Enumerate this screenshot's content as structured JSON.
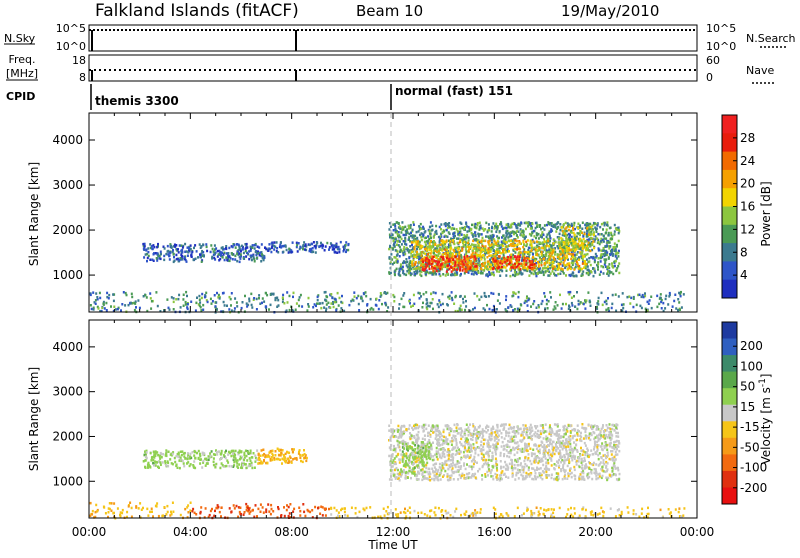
{
  "header": {
    "station": "Falkland Islands (fitACF)",
    "beam": "Beam 10",
    "date": "19/May/2010"
  },
  "params": {
    "nsky_label": "N.Sky",
    "nsky_ticks": [
      "10^5",
      "10^0"
    ],
    "nsearch_label": "N.Search",
    "nsearch_ticks": [
      "10^5",
      "10^0"
    ],
    "freq_label": "Freq.",
    "freq_unit": "[MHz]",
    "freq_ticks": [
      "18",
      "8"
    ],
    "nave_label": "Nave",
    "nave_ticks": [
      "60",
      "0"
    ],
    "cpid_label": "CPID",
    "cpid_segments": [
      {
        "label": "themis 3300",
        "start_h": 0,
        "end_h": 12
      },
      {
        "label": "normal (fast) 151",
        "start_h": 12,
        "end_h": 24
      }
    ]
  },
  "colors": {
    "power_scale": [
      "#1f2fbf",
      "#2e55c8",
      "#3b7a8f",
      "#4a9a55",
      "#8cc63f",
      "#f2d400",
      "#f5a000",
      "#f26a00",
      "#e81c0c",
      "#f02020"
    ],
    "velocity_scale": [
      "#1e3aa0",
      "#2f5fc0",
      "#3c8a6a",
      "#5aa84a",
      "#8fd050",
      "#c8c8c8",
      "#f5c518",
      "#f59a18",
      "#f26a10",
      "#e03010",
      "#e81010"
    ],
    "cpid_marker": "#000000",
    "divider": "#bbbbbb"
  },
  "chart_data": [
    {
      "type": "heatmap",
      "title": "Power",
      "xlabel": "Time UT",
      "ylabel": "Slant Range [km]",
      "xlim": [
        0,
        24
      ],
      "ylim": [
        180,
        4600
      ],
      "x_ticks": [
        "00:00",
        "04:00",
        "08:00",
        "12:00",
        "16:00",
        "20:00",
        "00:00"
      ],
      "y_ticks": [
        "1000",
        "2000",
        "3000",
        "4000"
      ],
      "colorbar_label": "Power [dB]",
      "colorbar_ticks": [
        "4",
        "8",
        "12",
        "16",
        "20",
        "24",
        "28"
      ],
      "colorbar_range": [
        0,
        32
      ],
      "regions": [
        {
          "t0": 2.1,
          "t1": 6.9,
          "r0": 1320,
          "r1": 1720,
          "value": 6
        },
        {
          "t0": 6.9,
          "t1": 10.3,
          "r0": 1520,
          "r1": 1760,
          "value": 5
        },
        {
          "t0": 11.8,
          "t1": 20.9,
          "r0": 1000,
          "r1": 2200,
          "value": 10
        },
        {
          "t0": 12.7,
          "t1": 19.6,
          "r0": 1150,
          "r1": 1800,
          "value": 18
        },
        {
          "t0": 13.1,
          "t1": 15.3,
          "r0": 1100,
          "r1": 1450,
          "value": 28
        },
        {
          "t0": 15.9,
          "t1": 17.6,
          "r0": 1150,
          "r1": 1450,
          "value": 26
        },
        {
          "t0": 18.5,
          "t1": 19.9,
          "r0": 1550,
          "r1": 2100,
          "value": 16
        },
        {
          "t0": 0.0,
          "t1": 23.5,
          "r0": 200,
          "r1": 650,
          "value": 9
        }
      ]
    },
    {
      "type": "heatmap",
      "title": "Velocity",
      "xlabel": "Time UT",
      "ylabel": "Slant Range [km]",
      "xlim": [
        0,
        24
      ],
      "ylim": [
        180,
        4600
      ],
      "x_ticks": [
        "00:00",
        "04:00",
        "08:00",
        "12:00",
        "16:00",
        "20:00",
        "00:00"
      ],
      "y_ticks": [
        "1000",
        "2000",
        "3000",
        "4000"
      ],
      "colorbar_label": "Velocity [m s^-1]",
      "colorbar_ticks": [
        "200",
        "100",
        "50",
        "15",
        "-15",
        "-50",
        "-100",
        "-200"
      ],
      "colorbar_range": [
        -250,
        250
      ],
      "regions": [
        {
          "t0": 2.1,
          "t1": 6.6,
          "r0": 1320,
          "r1": 1720,
          "value": 40
        },
        {
          "t0": 6.6,
          "t1": 8.6,
          "r0": 1420,
          "r1": 1760,
          "value": -60
        },
        {
          "t0": 11.8,
          "t1": 20.9,
          "r0": 1050,
          "r1": 2300,
          "value": 0
        },
        {
          "t0": 12.3,
          "t1": 13.4,
          "r0": 1200,
          "r1": 1900,
          "value": 45
        },
        {
          "t0": 0.0,
          "t1": 4.0,
          "r0": 200,
          "r1": 550,
          "value": -60
        },
        {
          "t0": 4.0,
          "t1": 9.5,
          "r0": 200,
          "r1": 520,
          "value": -150
        },
        {
          "t0": 9.5,
          "t1": 23.5,
          "r0": 200,
          "r1": 450,
          "value": -40
        }
      ]
    }
  ]
}
